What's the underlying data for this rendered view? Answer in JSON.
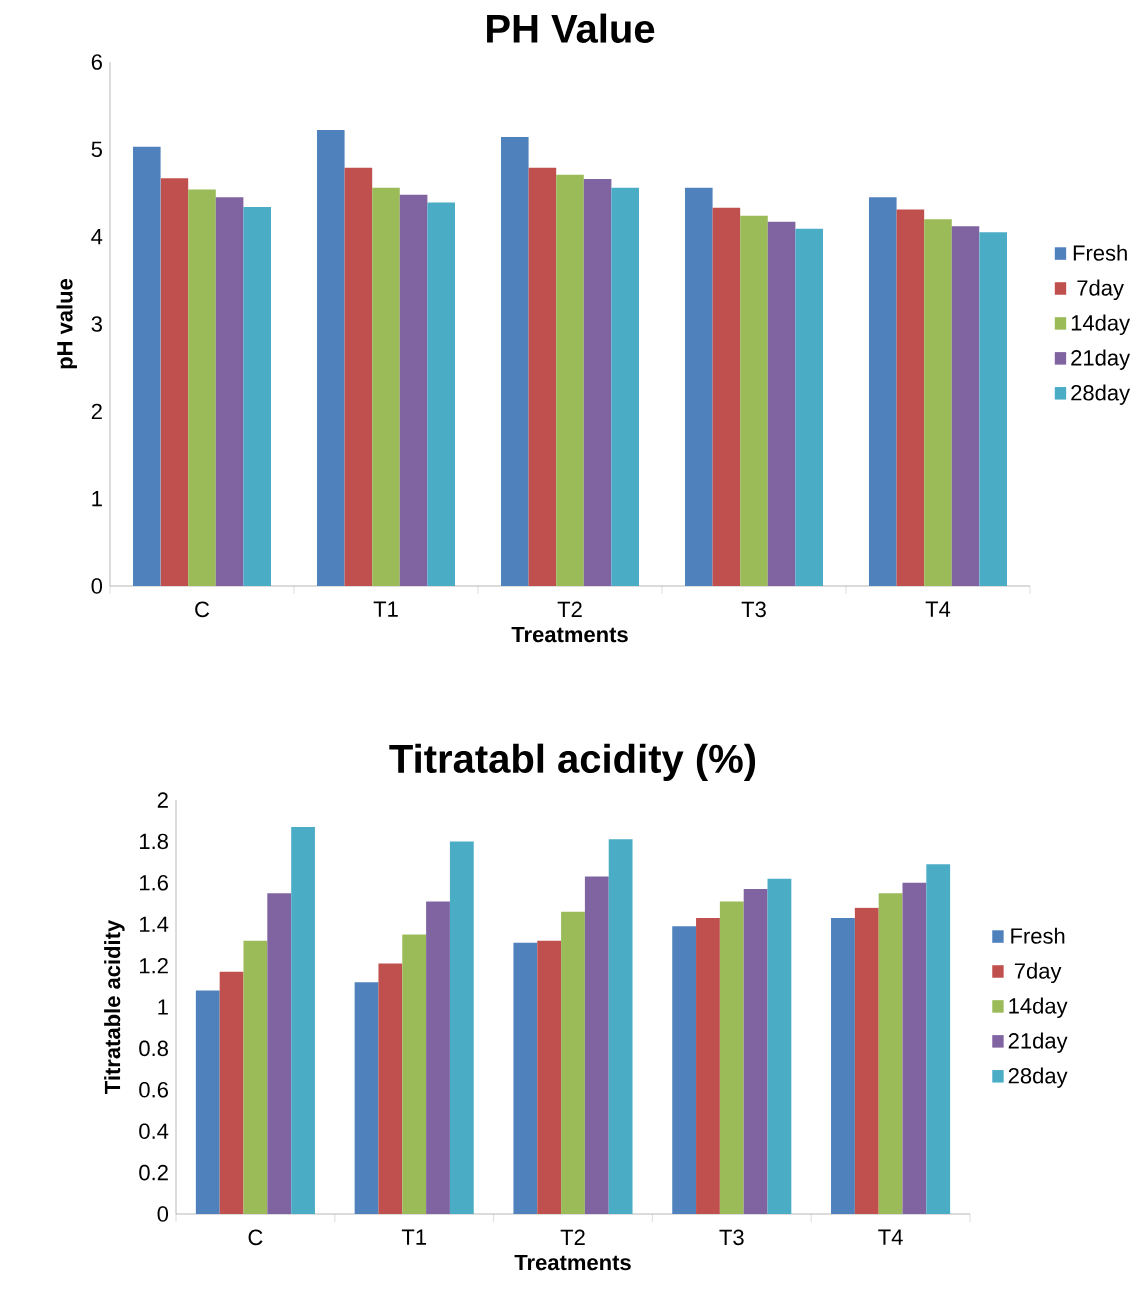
{
  "chart_data": [
    {
      "type": "bar",
      "title": "PH Value",
      "xlabel": "Treatments",
      "ylabel": "pH value",
      "categories": [
        "C",
        "T1",
        "T2",
        "T3",
        "T4"
      ],
      "ylim": [
        0,
        6
      ],
      "yticks": [
        0,
        1,
        2,
        3,
        4,
        5,
        6
      ],
      "legend": "right",
      "grid": false,
      "series": [
        {
          "name": "Fresh",
          "color": "#4f81bd",
          "values": [
            5.03,
            5.22,
            5.14,
            4.56,
            4.45
          ]
        },
        {
          "name": "7day",
          "color": "#c0504d",
          "values": [
            4.67,
            4.79,
            4.79,
            4.33,
            4.31
          ]
        },
        {
          "name": "14day",
          "color": "#9bbb59",
          "values": [
            4.54,
            4.56,
            4.71,
            4.24,
            4.2
          ]
        },
        {
          "name": "21day",
          "color": "#8064a2",
          "values": [
            4.45,
            4.48,
            4.66,
            4.17,
            4.12
          ]
        },
        {
          "name": "28day",
          "color": "#4bacc6",
          "values": [
            4.34,
            4.39,
            4.56,
            4.09,
            4.05
          ]
        }
      ]
    },
    {
      "type": "bar",
      "title": "Titratabl acidity (%)",
      "xlabel": "Treatments",
      "ylabel": "Titratable acidity",
      "categories": [
        "C",
        "T1",
        "T2",
        "T3",
        "T4"
      ],
      "ylim": [
        0,
        2
      ],
      "yticks": [
        0,
        0.2,
        0.4,
        0.6,
        0.8,
        1,
        1.2,
        1.4,
        1.6,
        1.8,
        2
      ],
      "legend": "right",
      "grid": false,
      "series": [
        {
          "name": "Fresh",
          "color": "#4f81bd",
          "values": [
            1.08,
            1.12,
            1.31,
            1.39,
            1.43
          ]
        },
        {
          "name": "7day",
          "color": "#c0504d",
          "values": [
            1.17,
            1.21,
            1.32,
            1.43,
            1.48
          ]
        },
        {
          "name": "14day",
          "color": "#9bbb59",
          "values": [
            1.32,
            1.35,
            1.46,
            1.51,
            1.55
          ]
        },
        {
          "name": "21day",
          "color": "#8064a2",
          "values": [
            1.55,
            1.51,
            1.63,
            1.57,
            1.6
          ]
        },
        {
          "name": "28day",
          "color": "#4bacc6",
          "values": [
            1.87,
            1.8,
            1.81,
            1.62,
            1.69
          ]
        }
      ]
    }
  ]
}
